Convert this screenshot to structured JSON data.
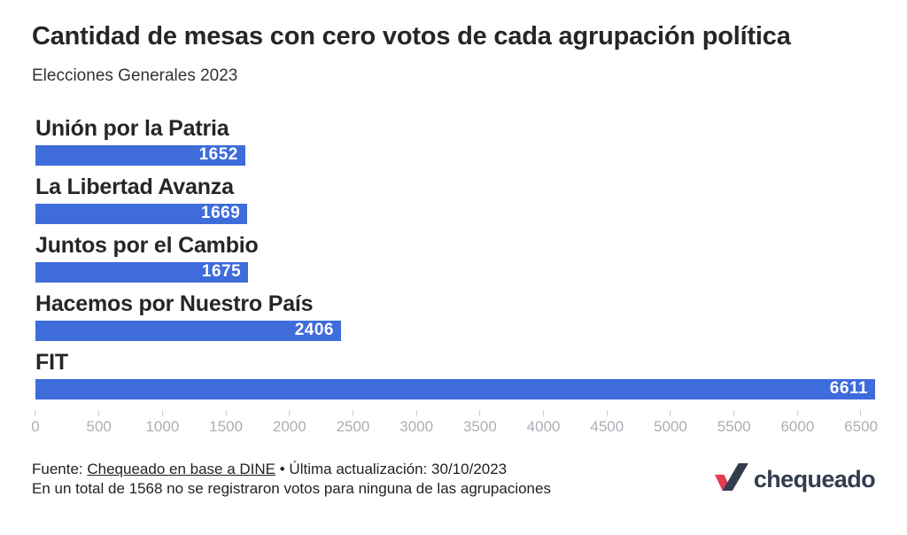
{
  "header": {
    "title": "Cantidad de mesas con cero votos de cada agrupación política",
    "subtitle": "Elecciones Generales 2023"
  },
  "chart_data": {
    "type": "bar",
    "orientation": "horizontal",
    "title": "Cantidad de mesas con cero votos de cada agrupación política",
    "subtitle": "Elecciones Generales 2023",
    "categories": [
      "Unión por la Patria",
      "La Libertad Avanza",
      "Juntos por el Cambio",
      "Hacemos por Nuestro País",
      "FIT"
    ],
    "values": [
      1652,
      1669,
      1675,
      2406,
      6611
    ],
    "value_labels": [
      "1652",
      "1669",
      "1675",
      "2406",
      "6611"
    ],
    "xlabel": "",
    "ylabel": "",
    "xlim": [
      0,
      6611
    ],
    "axis_ticks": [
      0,
      500,
      1000,
      1500,
      2000,
      2500,
      3000,
      3500,
      4000,
      4500,
      5000,
      5500,
      6000,
      6500
    ],
    "bar_color": "#3e6cdb",
    "grid": false,
    "legend": false
  },
  "footer": {
    "source_label": "Fuente: ",
    "source_link": "Chequeado en base a DINE",
    "updated": " • Última actualización: 30/10/2023",
    "note": "En un total de 1568 no se registraron votos para ninguna de las agrupaciones"
  },
  "logo": {
    "text": "chequeado",
    "navy": "#333d4f",
    "red": "#e53a50"
  }
}
